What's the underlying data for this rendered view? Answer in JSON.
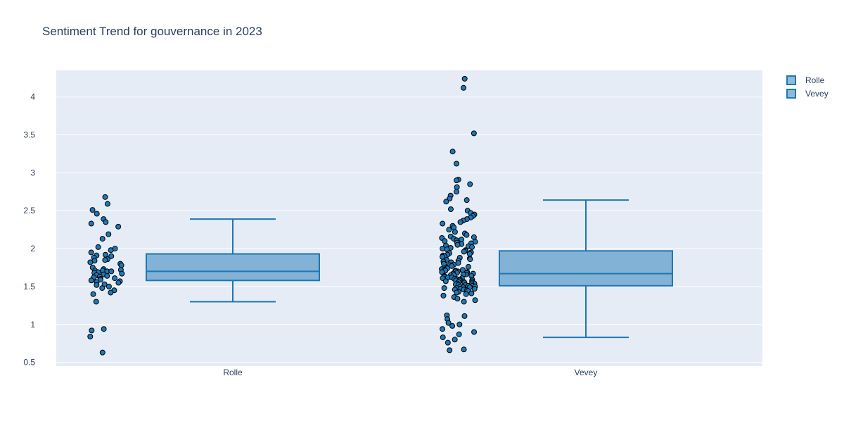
{
  "chart_data": {
    "type": "box",
    "title": "Sentiment Trend for gouvernance in 2023",
    "xlabel": "",
    "ylabel": "",
    "categories": [
      "Rolle",
      "Vevey"
    ],
    "ylim": [
      0.45,
      4.35
    ],
    "yticks": [
      0.5,
      1,
      1.5,
      2,
      2.5,
      3,
      3.5,
      4
    ],
    "ytick_labels": [
      "0.5",
      "1",
      "1.5",
      "2",
      "2.5",
      "3",
      "3.5",
      "4"
    ],
    "grid": true,
    "legend_position": "top-right",
    "colors": {
      "box_fill": "#1f77b4",
      "box_line": "#1f77b4",
      "point_fill": "#1f77b4",
      "point_edge": "#000000",
      "plot_bg": "#e5ecf6",
      "grid": "#ffffff",
      "text": "#2a3f5f"
    },
    "series": [
      {
        "name": "Rolle",
        "category": "Rolle",
        "whisker_low": 1.3,
        "q1": 1.58,
        "median": 1.7,
        "q3": 1.93,
        "whisker_high": 2.39,
        "points": [
          2.68,
          2.59,
          2.51,
          2.46,
          2.39,
          2.35,
          2.33,
          2.29,
          2.19,
          2.13,
          2.02,
          2.0,
          1.98,
          1.95,
          1.92,
          1.91,
          1.9,
          1.88,
          1.86,
          1.85,
          1.84,
          1.82,
          1.8,
          1.78,
          1.75,
          1.73,
          1.72,
          1.71,
          1.71,
          1.7,
          1.7,
          1.69,
          1.68,
          1.67,
          1.66,
          1.65,
          1.64,
          1.63,
          1.62,
          1.61,
          1.6,
          1.59,
          1.58,
          1.57,
          1.56,
          1.55,
          1.53,
          1.52,
          1.5,
          1.48,
          1.45,
          1.42,
          1.4,
          1.3,
          0.94,
          0.92,
          0.84,
          0.63
        ]
      },
      {
        "name": "Vevey",
        "category": "Vevey",
        "whisker_low": 0.83,
        "q1": 1.51,
        "median": 1.67,
        "q3": 1.97,
        "whisker_high": 2.64,
        "points": [
          4.24,
          4.12,
          3.52,
          3.28,
          3.12,
          2.91,
          2.9,
          2.85,
          2.81,
          2.75,
          2.7,
          2.66,
          2.64,
          2.62,
          2.52,
          2.5,
          2.47,
          2.45,
          2.43,
          2.41,
          2.39,
          2.37,
          2.35,
          2.33,
          2.3,
          2.28,
          2.25,
          2.22,
          2.2,
          2.18,
          2.16,
          2.15,
          2.14,
          2.13,
          2.12,
          2.11,
          2.1,
          2.09,
          2.08,
          2.07,
          2.06,
          2.05,
          2.04,
          2.03,
          2.02,
          2.01,
          2.0,
          1.99,
          1.98,
          1.97,
          1.96,
          1.95,
          1.94,
          1.93,
          1.92,
          1.91,
          1.9,
          1.89,
          1.88,
          1.87,
          1.86,
          1.85,
          1.84,
          1.83,
          1.82,
          1.81,
          1.8,
          1.79,
          1.78,
          1.77,
          1.76,
          1.75,
          1.74,
          1.73,
          1.72,
          1.72,
          1.71,
          1.71,
          1.7,
          1.7,
          1.69,
          1.69,
          1.68,
          1.68,
          1.67,
          1.67,
          1.66,
          1.66,
          1.65,
          1.65,
          1.64,
          1.64,
          1.63,
          1.63,
          1.62,
          1.62,
          1.61,
          1.61,
          1.6,
          1.6,
          1.59,
          1.59,
          1.58,
          1.58,
          1.57,
          1.57,
          1.56,
          1.56,
          1.55,
          1.55,
          1.54,
          1.54,
          1.53,
          1.53,
          1.52,
          1.52,
          1.51,
          1.51,
          1.5,
          1.5,
          1.49,
          1.49,
          1.48,
          1.48,
          1.47,
          1.47,
          1.46,
          1.46,
          1.45,
          1.44,
          1.43,
          1.42,
          1.41,
          1.4,
          1.38,
          1.36,
          1.34,
          1.32,
          1.3,
          1.12,
          1.11,
          1.07,
          1.02,
          1.0,
          0.98,
          0.94,
          0.9,
          0.87,
          0.83,
          0.8,
          0.76,
          0.67,
          0.66
        ]
      }
    ]
  }
}
